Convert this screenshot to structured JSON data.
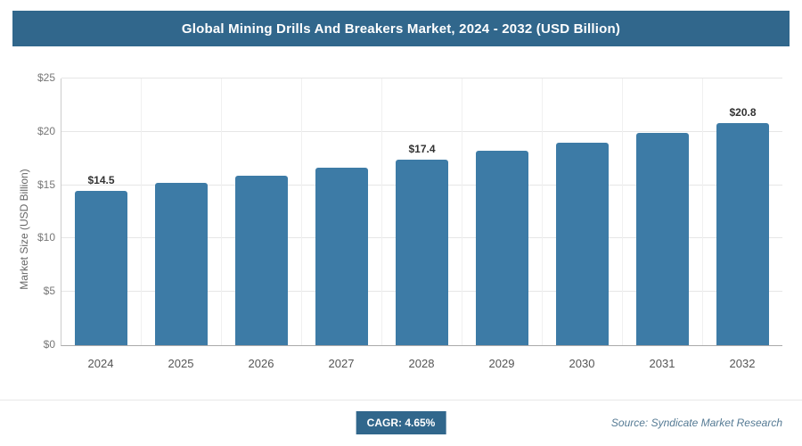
{
  "header": {
    "title": "Global Mining Drills And Breakers Market, 2024 - 2032 (USD Billion)"
  },
  "colors": {
    "header_bg": "#31678c",
    "bar": "#3d7ba6",
    "badge_bg": "#31678c",
    "gridline": "#e6e6e6"
  },
  "chart_data": {
    "type": "bar",
    "title": "Global Mining Drills And Breakers Market, 2024 - 2032 (USD Billion)",
    "categories": [
      "2024",
      "2025",
      "2026",
      "2027",
      "2028",
      "2029",
      "2030",
      "2031",
      "2032"
    ],
    "values": [
      14.5,
      15.2,
      15.9,
      16.6,
      17.4,
      18.2,
      19.0,
      19.9,
      20.8
    ],
    "data_labels": [
      "$14.5",
      "",
      "",
      "",
      "$17.4",
      "",
      "",
      "",
      "$20.8"
    ],
    "xlabel": "",
    "ylabel": "Market Size (USD Billion)",
    "ylim": [
      0,
      25
    ],
    "ytick_step": 5,
    "ytick_labels": [
      "$0",
      "$5",
      "$10",
      "$15",
      "$20",
      "$25"
    ],
    "grid": true,
    "legend": "none"
  },
  "footer": {
    "cagr_label": "CAGR: 4.65%",
    "source": "Source: Syndicate Market Research"
  }
}
